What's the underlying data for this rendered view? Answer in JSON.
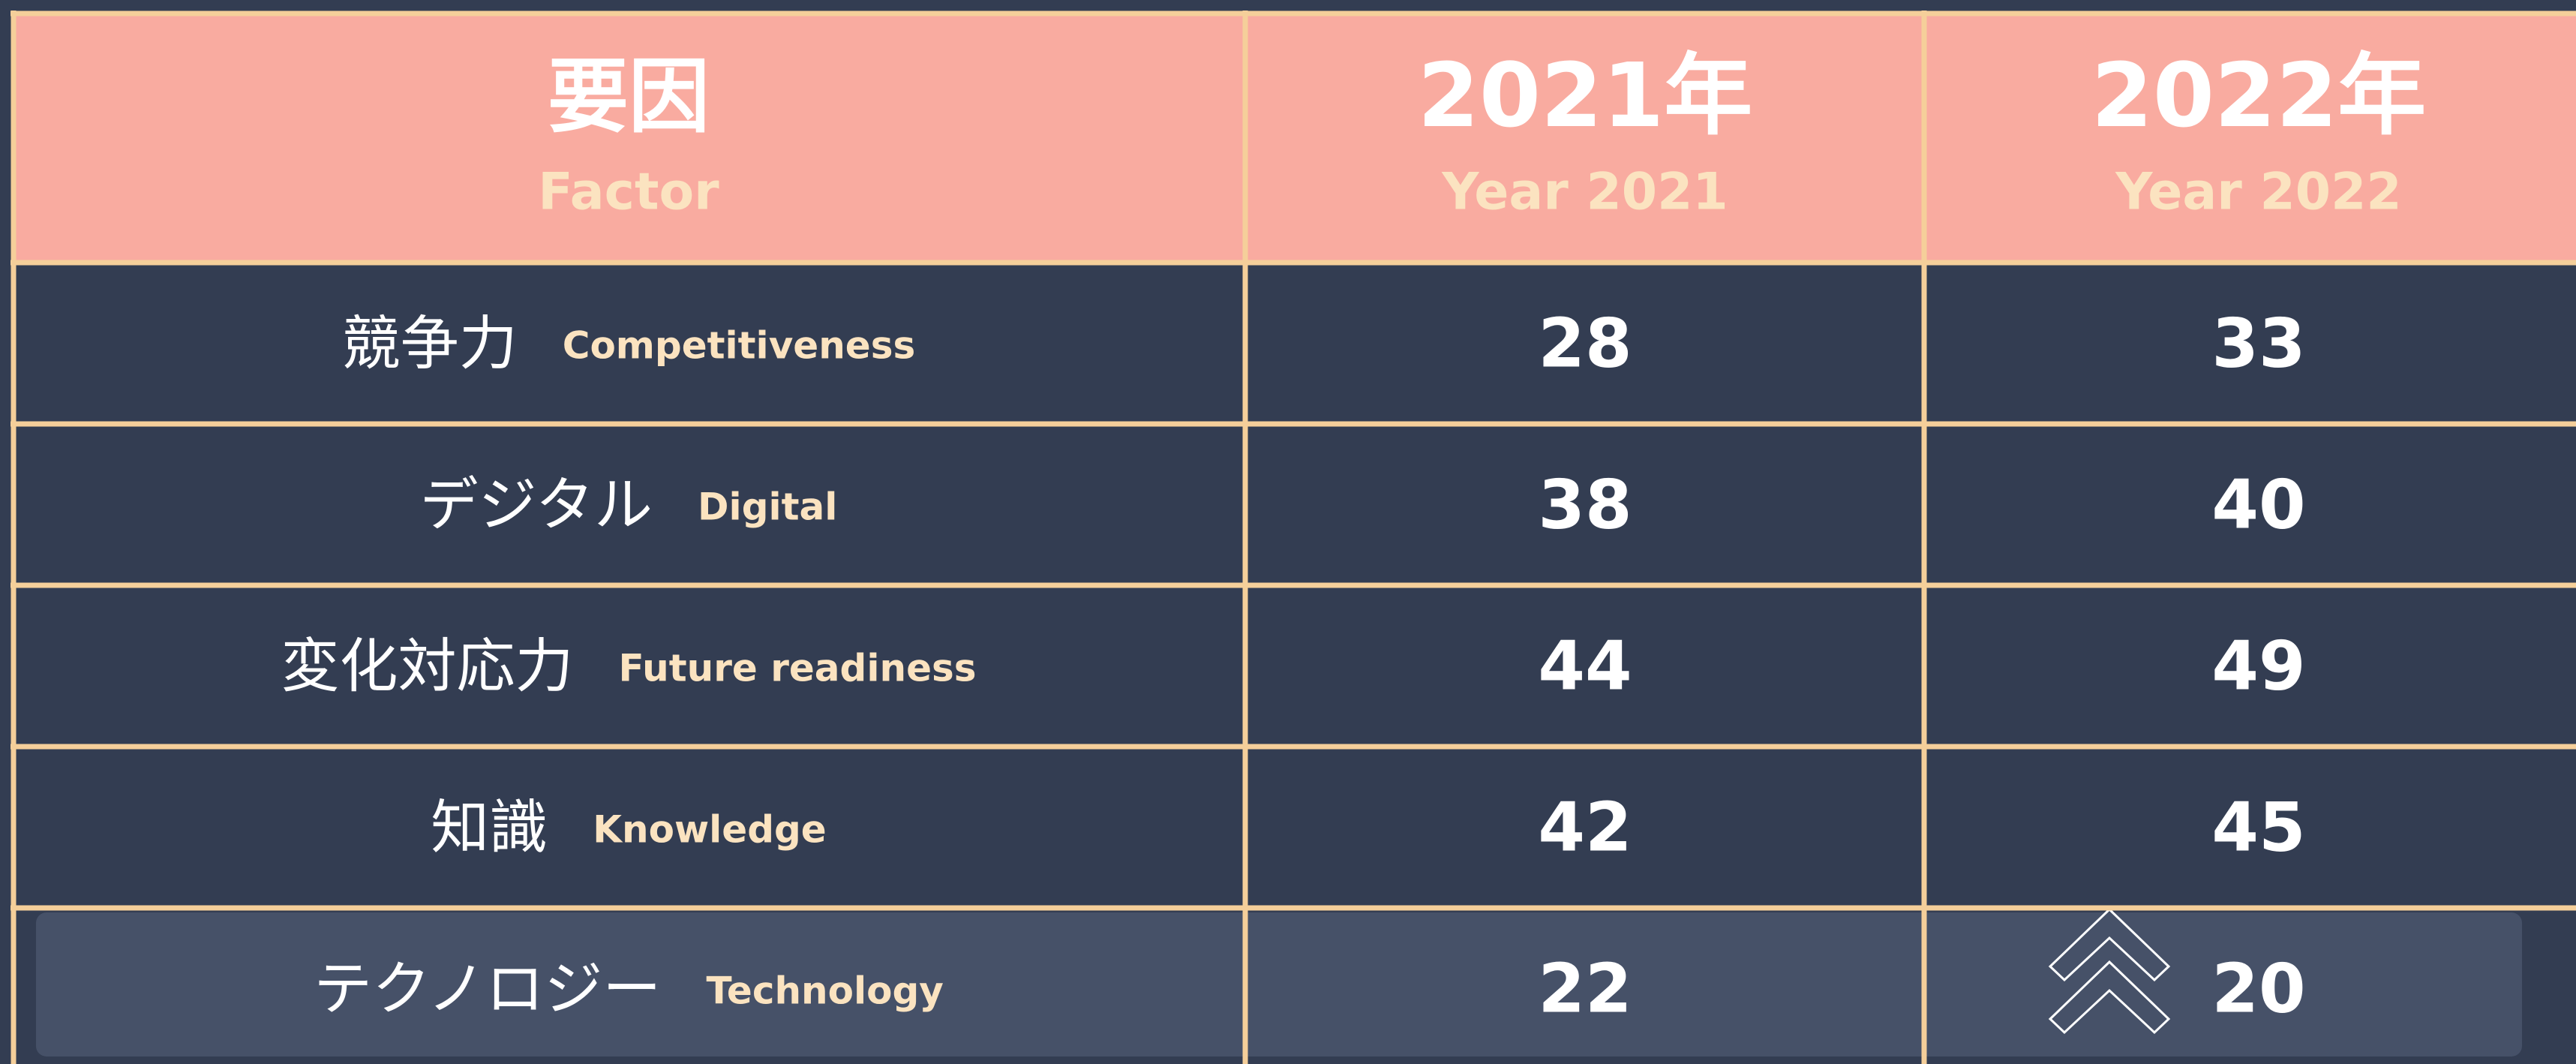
{
  "table": {
    "headers": [
      {
        "ja": "要因",
        "en": "Factor"
      },
      {
        "ja": "2021年",
        "en": "Year 2021"
      },
      {
        "ja": "2022年",
        "en": "Year 2022"
      }
    ],
    "rows": [
      {
        "ja": "競争力",
        "en": "Competitiveness",
        "values": [
          28,
          33
        ]
      },
      {
        "ja": "デジタル",
        "en": "Digital",
        "values": [
          38,
          40
        ]
      },
      {
        "ja": "変化対応力",
        "en": "Future readiness",
        "values": [
          44,
          49
        ]
      },
      {
        "ja": "知識",
        "en": "Knowledge",
        "values": [
          42,
          45
        ]
      },
      {
        "ja": "テクノロジー",
        "en": "Technology",
        "values": [
          22,
          20
        ]
      }
    ]
  }
}
